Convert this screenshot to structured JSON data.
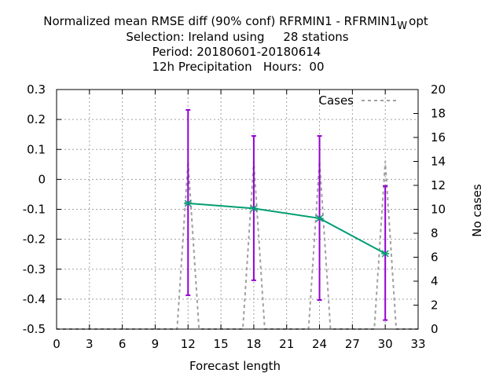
{
  "chart_data": {
    "type": "line",
    "title_lines": [
      "Normalized mean RMSE diff (90% conf) RFRMIN1 - RFRMIN1",
      "Selection: Ireland using     28 stations",
      "Period: 20180601-20180614",
      "12h Precipitation   Hours:  00"
    ],
    "title_subscript": "W",
    "title_suffix": "opt",
    "xlabel": "Forecast length",
    "ylabel": "",
    "y2label": "No cases",
    "xlim": [
      0,
      33
    ],
    "ylim": [
      -0.5,
      0.3
    ],
    "y2lim": [
      0,
      20
    ],
    "xticks": [
      "0",
      "3",
      "6",
      "9",
      "12",
      "15",
      "18",
      "21",
      "24",
      "27",
      "30",
      "33"
    ],
    "yticks": [
      "-0.5",
      "-0.4",
      "-0.3",
      "-0.2",
      "-0.1",
      "0",
      "0.1",
      "0.2",
      "0.3"
    ],
    "y2ticks": [
      "0",
      "2",
      "4",
      "6",
      "8",
      "10",
      "12",
      "14",
      "16",
      "18",
      "20"
    ],
    "grid": true,
    "legend": {
      "position": "top-right",
      "entries": [
        "Cases"
      ]
    },
    "colors": {
      "diff": "#009e73",
      "errorbar": "#9400d3",
      "cases": "#a0a0a0"
    },
    "series": [
      {
        "x": [
          12,
          18,
          24,
          30
        ],
        "values": [
          -0.08,
          -0.097,
          -0.13,
          -0.248
        ],
        "ci_low": [
          -0.387,
          -0.337,
          -0.403,
          -0.47
        ],
        "ci_high": [
          0.232,
          0.145,
          0.145,
          -0.022
        ]
      },
      {
        "name": "Cases",
        "axis": "y2",
        "x": [
          0,
          11,
          12,
          13,
          17,
          18,
          19,
          23,
          24,
          25,
          29,
          30,
          31,
          33
        ],
        "values": [
          0,
          0,
          14,
          0,
          0,
          14,
          0,
          0,
          14,
          0,
          0,
          14,
          0,
          0
        ]
      }
    ]
  }
}
